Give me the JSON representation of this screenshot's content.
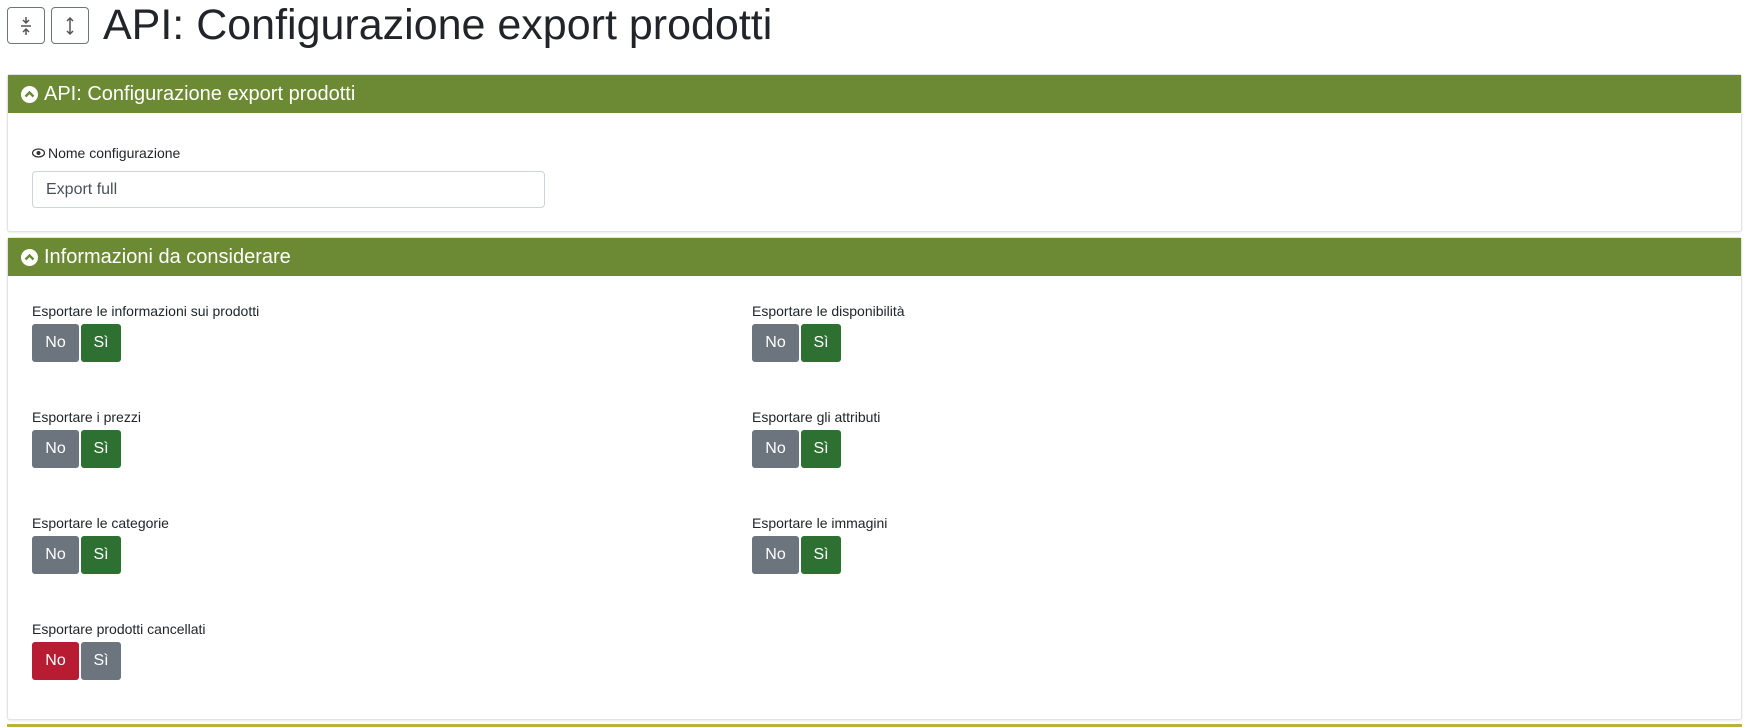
{
  "page_title": "API: Configurazione export prodotti",
  "panels": [
    {
      "title": "API: Configurazione export prodotti",
      "fields": [
        {
          "label": "Nome configurazione",
          "value": "Export full"
        }
      ]
    },
    {
      "title": "Informazioni da considerare",
      "toggles": [
        {
          "label": "Esportare le informazioni sui prodotti",
          "options": [
            "No",
            "Sì"
          ],
          "selected": 1
        },
        {
          "label": "Esportare le disponibilità",
          "options": [
            "No",
            "Sì"
          ],
          "selected": 1
        },
        {
          "label": "Esportare i prezzi",
          "options": [
            "No",
            "Sì"
          ],
          "selected": 1
        },
        {
          "label": "Esportare gli attributi",
          "options": [
            "No",
            "Sì"
          ],
          "selected": 1
        },
        {
          "label": "Esportare le categorie",
          "options": [
            "No",
            "Sì"
          ],
          "selected": 1
        },
        {
          "label": "Esportare le immagini",
          "options": [
            "No",
            "Sì"
          ],
          "selected": 1
        },
        {
          "label": "Esportare prodotti cancellati",
          "options": [
            "No",
            "Sì"
          ],
          "selected": 0
        }
      ]
    }
  ]
}
